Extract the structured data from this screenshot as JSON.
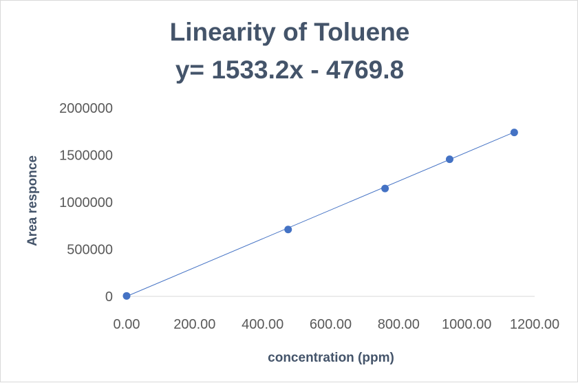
{
  "chart_data": {
    "type": "scatter",
    "title": "Linearity of Toluene",
    "subtitle": "y= 1533.2x  - 4769.8",
    "xlabel": "concentration (ppm)",
    "ylabel": "Area responce",
    "xlim": [
      0,
      1200
    ],
    "ylim": [
      0,
      2000000
    ],
    "x_ticks": [
      "0.00",
      "200.00",
      "400.00",
      "600.00",
      "800.00",
      "1000.00",
      "1200.00"
    ],
    "y_ticks": [
      "0",
      "500000",
      "1000000",
      "1500000",
      "2000000"
    ],
    "grid": false,
    "series": [
      {
        "x": [
          0,
          475,
          760,
          950,
          1140
        ],
        "y": [
          5000,
          710000,
          1145000,
          1455000,
          1740000
        ],
        "color": "#4472c4",
        "trendline": {
          "type": "linear",
          "slope": 1533.2,
          "intercept": -4769.8
        }
      }
    ]
  }
}
